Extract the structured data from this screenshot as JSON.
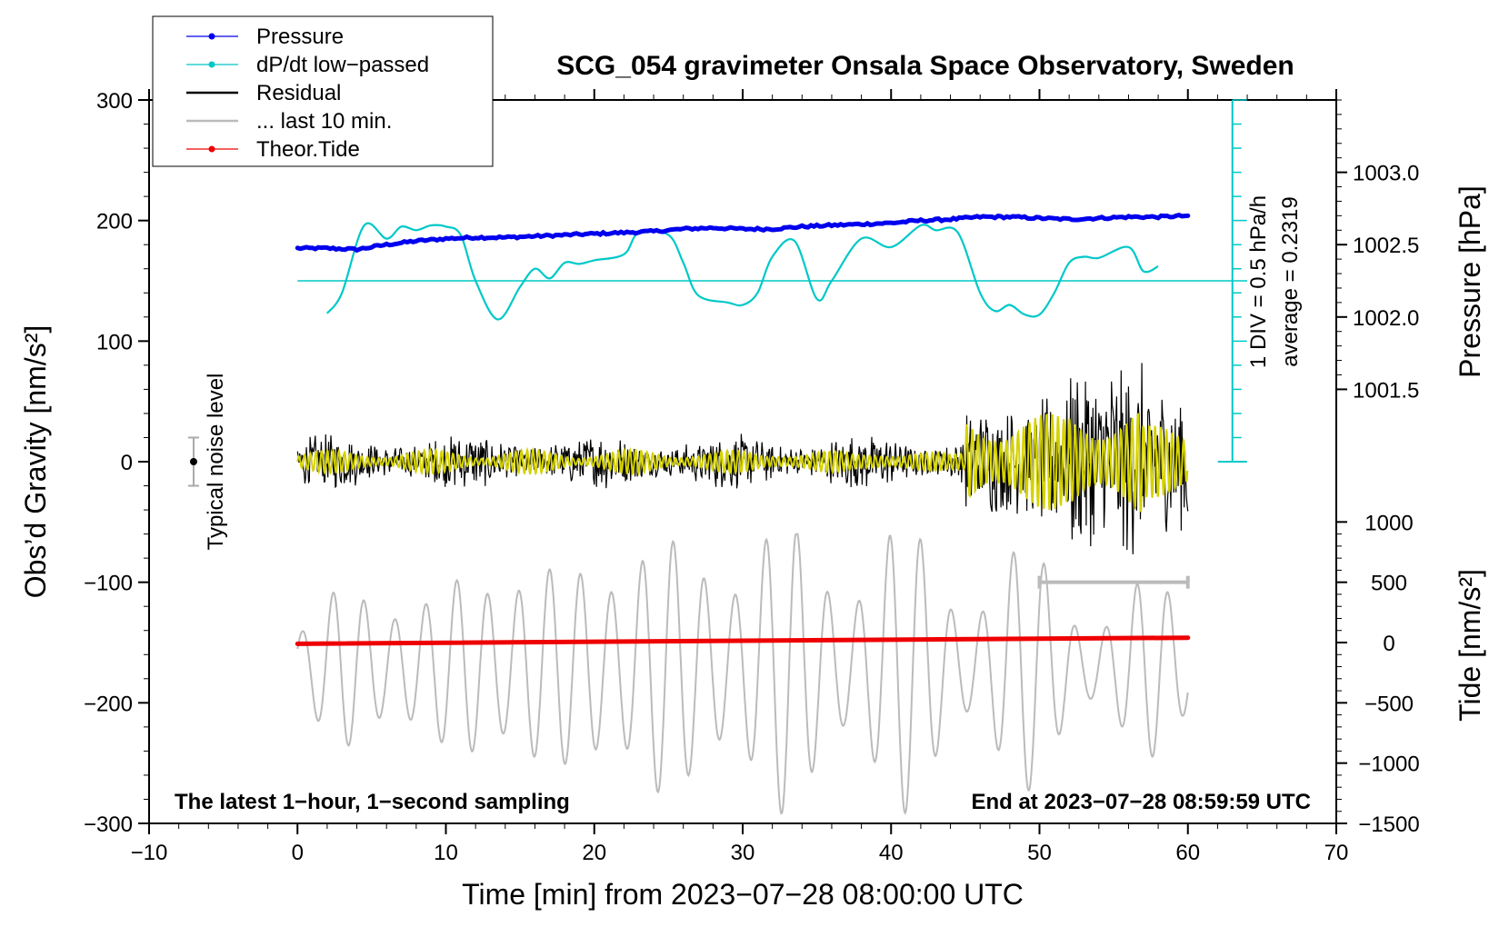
{
  "chart_data": {
    "type": "line",
    "title": "SCG_054 gravimeter Onsala Space Observatory, Sweden",
    "xlabel": "Time [min] from 2023−07−28 08:00:00 UTC",
    "ylabel_left": "Obs’d Gravity [nm/s²]",
    "ylabel_right_top": "Pressure [hPa]",
    "ylabel_right_bottom": "Tide [nm/s²]",
    "xlim": [
      -10,
      70
    ],
    "ylim_left": [
      -300,
      300
    ],
    "x_ticks": [
      "−10",
      "0",
      "10",
      "20",
      "30",
      "40",
      "50",
      "60",
      "70"
    ],
    "x_tick_values": [
      -10,
      0,
      10,
      20,
      30,
      40,
      50,
      60,
      70
    ],
    "y_left_ticks": [
      "300",
      "200",
      "100",
      "0",
      "−100",
      "−200",
      "−300"
    ],
    "y_left_tick_values": [
      300,
      200,
      100,
      0,
      -100,
      -200,
      -300
    ],
    "pressure_axis": {
      "ticks": [
        "1003.0",
        "1002.5",
        "1002.0",
        "1001.5"
      ],
      "tick_values": [
        1003.0,
        1002.5,
        1002.0,
        1001.5
      ],
      "gravity_equivalent": [
        240,
        180,
        120,
        60
      ]
    },
    "tide_axis": {
      "ticks": [
        "1000",
        "500",
        "0",
        "−500",
        "−1000",
        "−1500"
      ],
      "tick_values": [
        1000,
        500,
        0,
        -500,
        -1000,
        -1500
      ],
      "gravity_equivalent": [
        -50,
        -100,
        -150,
        -200,
        -250,
        -300
      ]
    },
    "legend": [
      {
        "label": "Pressure",
        "color": "#0000ee",
        "marker": "dot"
      },
      {
        "label": "dP/dt low−passed",
        "color": "#00c8c8",
        "marker": "dot"
      },
      {
        "label": "Residual",
        "color": "#000000",
        "marker": "none"
      },
      {
        "label": "... last 10 min.",
        "color": "#bbbbbb",
        "marker": "none"
      },
      {
        "label": "Theor.Tide",
        "color": "#ee0000",
        "marker": "dot"
      }
    ],
    "series": [
      {
        "name": "Pressure",
        "color": "#0000ee",
        "x": [
          0,
          2,
          4,
          6,
          8,
          10,
          12,
          14,
          16,
          18,
          20,
          22,
          24,
          26,
          28,
          30,
          32,
          34,
          36,
          38,
          40,
          42,
          44,
          46,
          48,
          50,
          52,
          54,
          56,
          58,
          60
        ],
        "y": [
          177,
          177,
          176,
          180,
          183,
          185,
          186,
          186,
          187,
          188,
          189,
          190,
          191,
          193,
          194,
          193,
          193,
          195,
          196,
          197,
          198,
          200,
          201,
          203,
          203,
          202,
          201,
          202,
          203,
          203,
          204
        ]
      },
      {
        "name": "dP/dt low−passed",
        "color": "#00c8c8",
        "x": [
          2,
          3,
          4.5,
          6,
          7,
          8,
          9,
          10,
          11,
          12,
          13.5,
          15,
          16,
          17,
          18,
          19,
          20,
          22,
          23,
          25,
          26,
          27,
          29,
          30,
          31,
          32,
          33.5,
          35,
          36,
          38,
          40,
          42,
          43,
          44.5,
          46,
          47,
          48,
          49,
          50,
          51,
          52,
          53,
          54,
          56,
          57,
          58
        ],
        "y": [
          123,
          140,
          196,
          185,
          195,
          192,
          196,
          195,
          188,
          150,
          118,
          145,
          160,
          152,
          165,
          164,
          167,
          172,
          190,
          188,
          165,
          138,
          132,
          130,
          140,
          170,
          183,
          135,
          150,
          185,
          178,
          196,
          192,
          190,
          140,
          125,
          130,
          122,
          122,
          140,
          165,
          170,
          169,
          178,
          158,
          162
        ]
      },
      {
        "name": "Theor.Tide",
        "color": "#ee0000",
        "x": [
          0,
          60
        ],
        "y": [
          -151,
          -146
        ]
      }
    ],
    "pressure_average_line": 150,
    "noise_level": {
      "center": 0,
      "half_range": 20,
      "x": -7
    }
  },
  "annotations": {
    "noise_label": "Typical noise level",
    "div_label": "1 DIV = 0.5 hPa/h",
    "average_label": "average = 0.2319",
    "bottom_left": "The latest 1−hour, 1−second sampling",
    "bottom_right": "End at 2023−07−28 08:59:59 UTC"
  },
  "colors": {
    "pressure": "#0000ee",
    "dpdt": "#00c8c8",
    "residual": "#000000",
    "residual_filtered": "#d4d200",
    "last10": "#bbbbbb",
    "tide": "#ee0000"
  }
}
